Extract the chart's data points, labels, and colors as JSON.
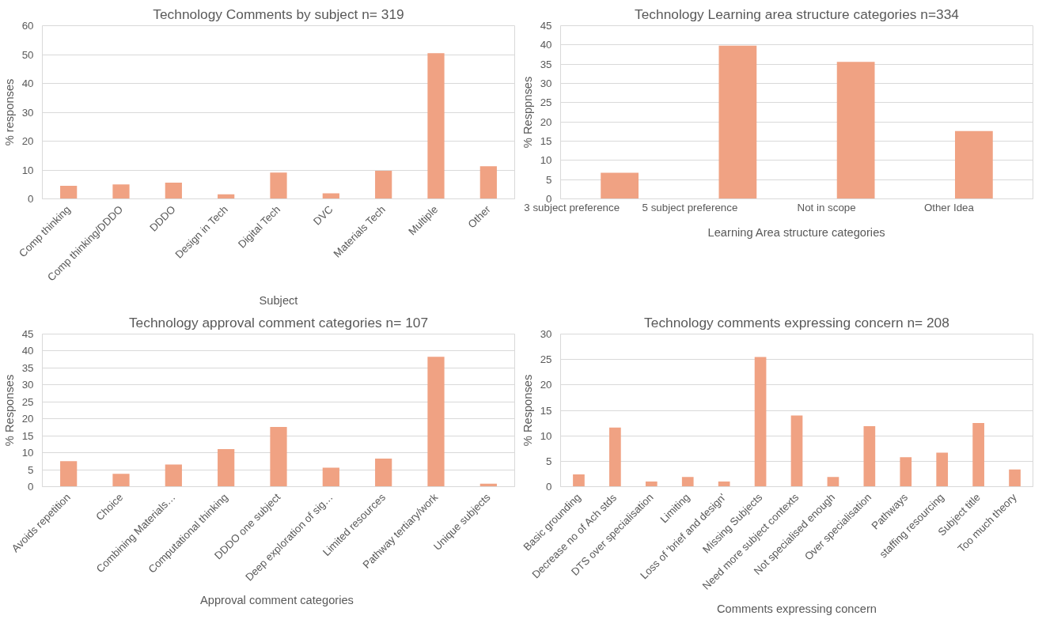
{
  "chart_data": [
    {
      "type": "bar",
      "title": "Technology Comments by subject n= 319",
      "xlabel": "Subject",
      "ylabel": "% responses",
      "categories": [
        "Comp thinking",
        "Comp thinking/DDDO",
        "DDDO",
        "Design in Tech",
        "Digital Tech",
        "DVC",
        "Materials Tech",
        "Multiple",
        "Other"
      ],
      "values": [
        4.5,
        5,
        5.6,
        1.6,
        9.1,
        1.9,
        9.7,
        50.5,
        11.3
      ],
      "color": "#f0a283",
      "ylim": [
        0,
        60
      ],
      "yticks": [
        0,
        10,
        20,
        30,
        40,
        50,
        60
      ],
      "grid": "y"
    },
    {
      "type": "bar",
      "title": "Technology Learning area structure categories n=334",
      "xlabel": "Learning Area structure categories",
      "ylabel": "% Resppnses",
      "categories": [
        "3 subject preference",
        "5 subject preference",
        "Not in scope",
        "Other Idea"
      ],
      "values": [
        6.8,
        39.8,
        35.6,
        17.6
      ],
      "color": "#f0a283",
      "ylim": [
        0,
        45
      ],
      "yticks": [
        0,
        5,
        10,
        15,
        20,
        25,
        30,
        35,
        40,
        45
      ],
      "grid": "y"
    },
    {
      "type": "bar",
      "title": "Technology approval comment categories n= 107",
      "xlabel": "Approval comment  categories",
      "ylabel": "% Responses",
      "categories": [
        "Avoids repetition",
        "Choice",
        "Combining Materials…",
        "Computational thinking",
        "DDDO one subject",
        "Deep exploration of sig…",
        "Limited resources",
        "Pathway tertiary/work",
        "Unique subjects"
      ],
      "values": [
        7.5,
        3.8,
        6.5,
        11.1,
        17.6,
        5.6,
        8.3,
        38.3,
        0.9
      ],
      "color": "#f0a283",
      "ylim": [
        0,
        45
      ],
      "yticks": [
        0,
        5,
        10,
        15,
        20,
        25,
        30,
        35,
        40,
        45
      ],
      "grid": "y"
    },
    {
      "type": "bar",
      "title": "Technology comments expressing concern n= 208",
      "xlabel": "Comments expressing concern",
      "ylabel": "% Responses",
      "categories": [
        "Basic grounding",
        "Decrease no of Ach stds",
        "DTS over specialisation",
        "Limiting",
        "Loss of 'brief and design'",
        "Missing Subjects",
        "Need more subject contexts",
        "Not specialised enough",
        "Over specialisation",
        "Pathways",
        "staffing resourcing",
        "Subject title",
        "Too much theory"
      ],
      "values": [
        2.4,
        11.6,
        1,
        1.9,
        1,
        25.5,
        14,
        1.9,
        11.9,
        5.8,
        6.7,
        12.5,
        3.4
      ],
      "color": "#f0a283",
      "ylim": [
        0,
        30
      ],
      "yticks": [
        0,
        5,
        10,
        15,
        20,
        25,
        30
      ],
      "grid": "y"
    }
  ]
}
